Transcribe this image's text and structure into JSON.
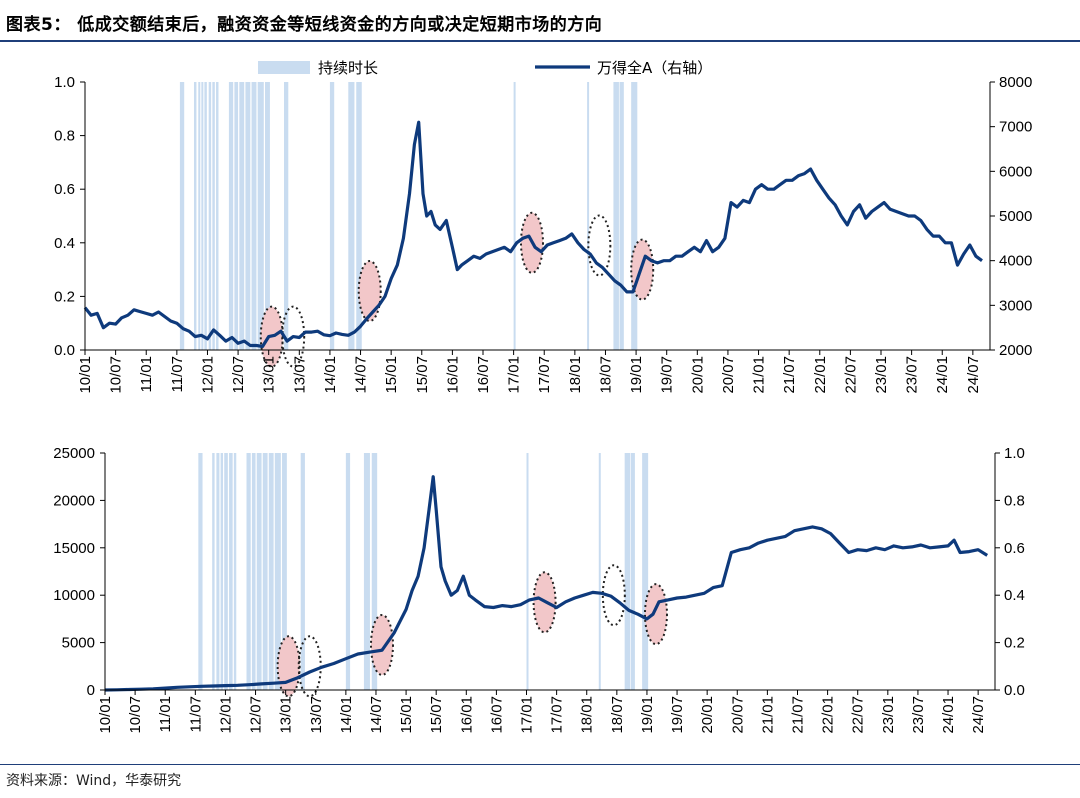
{
  "title": "图表5：  低成交额结束后，融资资金等短线资金的方向或决定短期市场的方向",
  "source": "资料来源：Wind，华泰研究",
  "colors": {
    "line": "#0e3a7c",
    "shade": "#c9dcf0",
    "ellipse_fill": "#f2c7c9",
    "ellipse_stroke": "#222222",
    "axis": "#000000"
  },
  "x_ticks": [
    "10/01",
    "10/07",
    "11/01",
    "11/07",
    "12/01",
    "12/07",
    "13/01",
    "13/07",
    "14/01",
    "14/07",
    "15/01",
    "15/07",
    "16/01",
    "16/07",
    "17/01",
    "17/07",
    "18/01",
    "18/07",
    "19/01",
    "19/07",
    "20/01",
    "20/07",
    "21/01",
    "21/07",
    "22/01",
    "22/07",
    "23/01",
    "23/07",
    "24/01",
    "24/07"
  ],
  "chart_data": [
    {
      "type": "line",
      "legend": [
        "持续时长",
        "万得全A（右轴）"
      ],
      "y_left": {
        "ticks": [
          "0.0",
          "0.2",
          "0.4",
          "0.6",
          "0.8",
          "1.0"
        ],
        "range": [
          0,
          1
        ]
      },
      "y_right": {
        "ticks": [
          "2000",
          "3000",
          "4000",
          "5000",
          "6000",
          "7000",
          "8000"
        ],
        "range": [
          2000,
          8000
        ]
      },
      "shaded_periods_left_axis": [
        [
          2011.55,
          2011.62
        ],
        [
          2011.78,
          2011.82
        ],
        [
          2011.85,
          2011.88
        ],
        [
          2011.9,
          2011.93
        ],
        [
          2011.95,
          2011.99
        ],
        [
          2012.02,
          2012.06
        ],
        [
          2012.08,
          2012.12
        ],
        [
          2012.14,
          2012.18
        ],
        [
          2012.35,
          2012.42
        ],
        [
          2012.44,
          2012.5
        ],
        [
          2012.52,
          2012.6
        ],
        [
          2012.62,
          2012.7
        ],
        [
          2012.72,
          2012.8
        ],
        [
          2012.82,
          2012.92
        ],
        [
          2012.94,
          2013.02
        ],
        [
          2013.25,
          2013.32
        ],
        [
          2014.0,
          2014.07
        ],
        [
          2014.3,
          2014.4
        ],
        [
          2014.43,
          2014.52
        ],
        [
          2017.0,
          2017.02
        ],
        [
          2018.2,
          2018.22
        ],
        [
          2018.63,
          2018.72
        ],
        [
          2018.73,
          2018.8
        ],
        [
          2018.92,
          2019.02
        ]
      ],
      "series": [
        {
          "name": "万得全A（右轴）",
          "axis": "right",
          "x": [
            2010.0,
            2010.1,
            2010.2,
            2010.3,
            2010.4,
            2010.5,
            2010.6,
            2010.7,
            2010.8,
            2010.9,
            2011.0,
            2011.1,
            2011.2,
            2011.3,
            2011.4,
            2011.5,
            2011.6,
            2011.7,
            2011.8,
            2011.9,
            2012.0,
            2012.1,
            2012.2,
            2012.3,
            2012.4,
            2012.5,
            2012.6,
            2012.7,
            2012.8,
            2012.9,
            2013.0,
            2013.1,
            2013.2,
            2013.3,
            2013.4,
            2013.5,
            2013.6,
            2013.7,
            2013.8,
            2013.9,
            2014.0,
            2014.1,
            2014.2,
            2014.3,
            2014.4,
            2014.5,
            2014.6,
            2014.7,
            2014.8,
            2014.9,
            2015.0,
            2015.1,
            2015.2,
            2015.3,
            2015.38,
            2015.45,
            2015.52,
            2015.58,
            2015.65,
            2015.72,
            2015.8,
            2015.9,
            2016.0,
            2016.08,
            2016.15,
            2016.25,
            2016.35,
            2016.45,
            2016.55,
            2016.65,
            2016.75,
            2016.85,
            2016.95,
            2017.05,
            2017.15,
            2017.25,
            2017.35,
            2017.45,
            2017.55,
            2017.65,
            2017.75,
            2017.85,
            2017.95,
            2018.05,
            2018.15,
            2018.25,
            2018.35,
            2018.45,
            2018.55,
            2018.65,
            2018.75,
            2018.85,
            2018.95,
            2019.05,
            2019.15,
            2019.25,
            2019.35,
            2019.45,
            2019.55,
            2019.65,
            2019.75,
            2019.85,
            2019.95,
            2020.05,
            2020.15,
            2020.25,
            2020.35,
            2020.45,
            2020.55,
            2020.65,
            2020.75,
            2020.85,
            2020.95,
            2021.05,
            2021.15,
            2021.25,
            2021.35,
            2021.45,
            2021.55,
            2021.65,
            2021.75,
            2021.85,
            2021.95,
            2022.05,
            2022.15,
            2022.25,
            2022.35,
            2022.45,
            2022.55,
            2022.65,
            2022.75,
            2022.85,
            2022.95,
            2023.05,
            2023.15,
            2023.25,
            2023.35,
            2023.45,
            2023.55,
            2023.65,
            2023.75,
            2023.85,
            2023.95,
            2024.05,
            2024.15,
            2024.25,
            2024.35,
            2024.45,
            2024.55,
            2024.65
          ],
          "y": [
            2950,
            2780,
            2820,
            2500,
            2600,
            2580,
            2720,
            2780,
            2900,
            2860,
            2820,
            2780,
            2850,
            2750,
            2650,
            2600,
            2480,
            2420,
            2300,
            2330,
            2250,
            2450,
            2330,
            2200,
            2280,
            2150,
            2200,
            2100,
            2100,
            2080,
            2300,
            2330,
            2420,
            2200,
            2300,
            2280,
            2400,
            2400,
            2420,
            2340,
            2320,
            2380,
            2350,
            2330,
            2400,
            2530,
            2700,
            2850,
            3000,
            3200,
            3600,
            3900,
            4500,
            5500,
            6600,
            7100,
            5500,
            5000,
            5100,
            4800,
            4700,
            4900,
            4300,
            3800,
            3900,
            4000,
            4100,
            4050,
            4150,
            4200,
            4250,
            4300,
            4200,
            4400,
            4500,
            4550,
            4300,
            4200,
            4350,
            4400,
            4450,
            4500,
            4600,
            4400,
            4250,
            4150,
            3950,
            3850,
            3700,
            3550,
            3450,
            3300,
            3300,
            3700,
            4100,
            4000,
            3950,
            4000,
            4000,
            4100,
            4100,
            4200,
            4300,
            4200,
            4450,
            4200,
            4300,
            4500,
            5300,
            5200,
            5350,
            5300,
            5600,
            5700,
            5600,
            5600,
            5700,
            5800,
            5800,
            5900,
            5950,
            6050,
            5800,
            5600,
            5400,
            5250,
            5000,
            4800,
            5100,
            5250,
            4950,
            5100,
            5200,
            5300,
            5150,
            5100,
            5050,
            5000,
            5000,
            4900,
            4700,
            4550,
            4550,
            4400,
            4400,
            3900,
            4150,
            4350,
            4100,
            4000
          ]
        }
      ],
      "ellipses": [
        {
          "x": 2013.05,
          "y": 0.05
        },
        {
          "x": 2013.4,
          "y": 0.05
        },
        {
          "x": 2014.65,
          "y": 0.22
        },
        {
          "x": 2017.3,
          "y": 0.4
        },
        {
          "x": 2018.4,
          "y": 0.39
        },
        {
          "x": 2019.1,
          "y": 0.3
        }
      ]
    },
    {
      "type": "line",
      "y_left": {
        "ticks": [
          "0",
          "5000",
          "10000",
          "15000",
          "20000",
          "25000"
        ],
        "range": [
          0,
          25000
        ]
      },
      "y_right": {
        "ticks": [
          "0.0",
          "0.2",
          "0.4",
          "0.6",
          "0.8",
          "1.0"
        ],
        "range": [
          0,
          1
        ]
      },
      "shaded_periods_right_axis": [
        [
          2011.55,
          2011.62
        ],
        [
          2011.78,
          2011.82
        ],
        [
          2011.85,
          2011.9
        ],
        [
          2011.92,
          2011.96
        ],
        [
          2011.98,
          2012.04
        ],
        [
          2012.06,
          2012.12
        ],
        [
          2012.14,
          2012.18
        ],
        [
          2012.35,
          2012.42
        ],
        [
          2012.44,
          2012.5
        ],
        [
          2012.52,
          2012.6
        ],
        [
          2012.62,
          2012.7
        ],
        [
          2012.72,
          2012.8
        ],
        [
          2012.82,
          2012.92
        ],
        [
          2012.94,
          2013.02
        ],
        [
          2013.25,
          2013.32
        ],
        [
          2014.0,
          2014.07
        ],
        [
          2014.3,
          2014.4
        ],
        [
          2014.43,
          2014.52
        ],
        [
          2017.0,
          2017.02
        ],
        [
          2018.2,
          2018.22
        ],
        [
          2018.63,
          2018.72
        ],
        [
          2018.73,
          2018.8
        ],
        [
          2018.92,
          2019.02
        ]
      ],
      "series": [
        {
          "axis": "left",
          "x": [
            2010.0,
            2010.2,
            2010.4,
            2010.6,
            2010.8,
            2011.0,
            2011.2,
            2011.4,
            2011.6,
            2011.8,
            2012.0,
            2012.2,
            2012.4,
            2012.6,
            2012.8,
            2013.0,
            2013.2,
            2013.4,
            2013.6,
            2013.8,
            2014.0,
            2014.2,
            2014.4,
            2014.6,
            2014.8,
            2015.0,
            2015.1,
            2015.2,
            2015.3,
            2015.38,
            2015.45,
            2015.5,
            2015.58,
            2015.65,
            2015.75,
            2015.85,
            2015.95,
            2016.05,
            2016.15,
            2016.3,
            2016.45,
            2016.6,
            2016.75,
            2016.9,
            2017.05,
            2017.2,
            2017.35,
            2017.5,
            2017.65,
            2017.8,
            2017.95,
            2018.1,
            2018.25,
            2018.4,
            2018.55,
            2018.7,
            2018.85,
            2019.0,
            2019.1,
            2019.2,
            2019.35,
            2019.5,
            2019.65,
            2019.8,
            2019.95,
            2020.1,
            2020.25,
            2020.4,
            2020.55,
            2020.7,
            2020.85,
            2021.0,
            2021.15,
            2021.3,
            2021.45,
            2021.6,
            2021.75,
            2021.9,
            2022.05,
            2022.2,
            2022.35,
            2022.5,
            2022.65,
            2022.8,
            2022.95,
            2023.1,
            2023.25,
            2023.4,
            2023.55,
            2023.7,
            2023.85,
            2024.0,
            2024.1,
            2024.2,
            2024.35,
            2024.5,
            2024.65
          ],
          "y": [
            0,
            20,
            50,
            80,
            130,
            200,
            280,
            340,
            390,
            420,
            460,
            500,
            560,
            640,
            720,
            800,
            1300,
            1900,
            2400,
            2800,
            3300,
            3800,
            4000,
            4200,
            6000,
            8500,
            10500,
            12000,
            15000,
            19000,
            22500,
            19000,
            13000,
            11500,
            10000,
            10500,
            12000,
            10000,
            9500,
            8800,
            8700,
            8900,
            8800,
            9000,
            9500,
            9700,
            9200,
            8700,
            9300,
            9700,
            10000,
            10300,
            10200,
            9900,
            9200,
            8400,
            8000,
            7500,
            8000,
            9300,
            9500,
            9700,
            9800,
            10000,
            10200,
            10800,
            11000,
            14500,
            14800,
            15000,
            15500,
            15800,
            16000,
            16200,
            16800,
            17000,
            17200,
            17000,
            16500,
            15500,
            14500,
            14800,
            14700,
            15000,
            14800,
            15200,
            15000,
            15100,
            15300,
            15000,
            15100,
            15200,
            15800,
            14500,
            14600,
            14800,
            14200
          ]
        }
      ],
      "ellipses": [
        {
          "x": 2013.05,
          "y": 0.1
        },
        {
          "x": 2013.4,
          "y": 0.1
        },
        {
          "x": 2014.6,
          "y": 0.19
        },
        {
          "x": 2017.3,
          "y": 0.37
        },
        {
          "x": 2018.45,
          "y": 0.4
        },
        {
          "x": 2019.15,
          "y": 0.32
        }
      ]
    }
  ]
}
